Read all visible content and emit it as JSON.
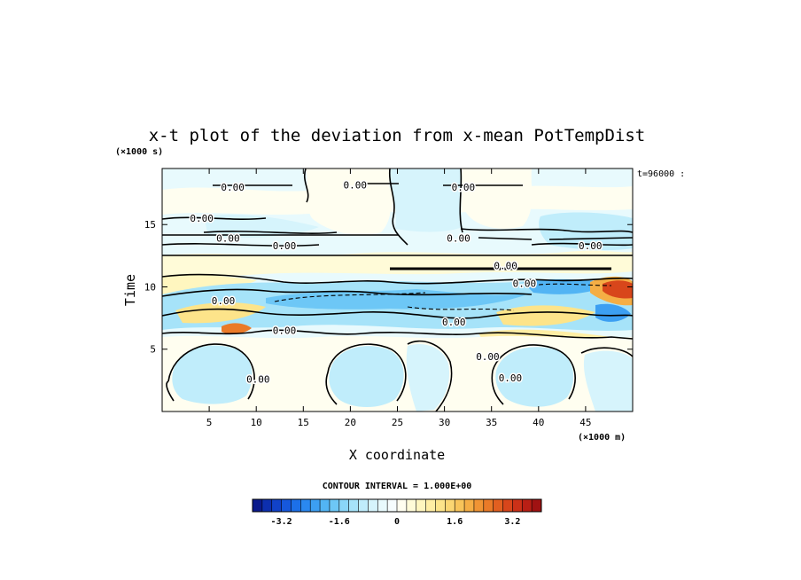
{
  "chart_data": {
    "type": "heatmap",
    "title": "x-t plot of the deviation from x-mean PotTempDist",
    "xlabel": "X coordinate",
    "ylabel": "Time",
    "x_unit": "(×1000 m)",
    "y_unit": "(×1000 s)",
    "time_stamp": "t=96000 :",
    "xlim": [
      0,
      50
    ],
    "ylim": [
      0,
      19.5
    ],
    "x_ticks": [
      5,
      10,
      15,
      20,
      25,
      30,
      35,
      40,
      45
    ],
    "y_ticks": [
      5,
      10,
      15
    ],
    "contour_interval_text": "CONTOUR INTERVAL = 1.000E+00",
    "contour_interval": 1.0,
    "contour_label": "0.00",
    "zero_contour_labels": [
      {
        "x": 7.5,
        "y": 18.0
      },
      {
        "x": 20.5,
        "y": 18.2
      },
      {
        "x": 32.0,
        "y": 18.0
      },
      {
        "x": 4.2,
        "y": 15.5
      },
      {
        "x": 7.0,
        "y": 13.9
      },
      {
        "x": 13.0,
        "y": 13.3
      },
      {
        "x": 31.5,
        "y": 13.9
      },
      {
        "x": 36.5,
        "y": 11.7
      },
      {
        "x": 38.5,
        "y": 10.3
      },
      {
        "x": 45.5,
        "y": 13.3
      },
      {
        "x": 6.5,
        "y": 8.9
      },
      {
        "x": 13.0,
        "y": 6.5
      },
      {
        "x": 31.0,
        "y": 7.2
      },
      {
        "x": 10.2,
        "y": 2.6
      },
      {
        "x": 34.6,
        "y": 4.4
      },
      {
        "x": 37.0,
        "y": 2.7
      }
    ],
    "colorbar": {
      "min": -4.0,
      "max": 4.0,
      "ticks": [
        -3.2,
        -1.6,
        0,
        1.6,
        3.2
      ],
      "tick_labels": [
        "-3.2",
        "-1.6",
        "0",
        "1.6",
        "3.2"
      ],
      "colors": [
        "#0a1a8c",
        "#0d2fae",
        "#1142c8",
        "#1658dc",
        "#1c70e8",
        "#2a88f0",
        "#3c9ff2",
        "#52b4f4",
        "#6dc7f6",
        "#8ad6f8",
        "#a6e3f9",
        "#c0edfb",
        "#d6f4fc",
        "#e8fafd",
        "#f6fdfe",
        "#fffef0",
        "#fffbd8",
        "#fff6bf",
        "#ffeea4",
        "#fde48a",
        "#fbd672",
        "#f8c45a",
        "#f5ae45",
        "#f09434",
        "#ea7a28",
        "#e25f20",
        "#d8461b",
        "#cb3118",
        "#b81f15",
        "#a01212"
      ]
    }
  }
}
